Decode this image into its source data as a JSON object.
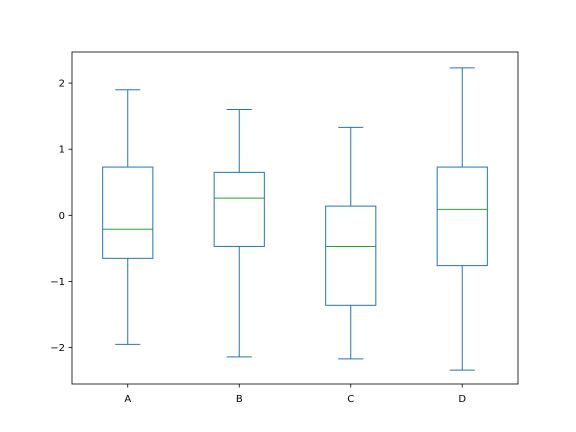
{
  "chart_data": {
    "type": "box",
    "title": "",
    "xlabel": "",
    "ylabel": "",
    "categories": [
      "A",
      "B",
      "C",
      "D"
    ],
    "boxes": [
      {
        "label": "A",
        "whisker_low": -1.95,
        "q1": -0.65,
        "median": -0.21,
        "q3": 0.73,
        "whisker_high": 1.9
      },
      {
        "label": "B",
        "whisker_low": -2.14,
        "q1": -0.47,
        "median": 0.26,
        "q3": 0.65,
        "whisker_high": 1.6
      },
      {
        "label": "C",
        "whisker_low": -2.17,
        "q1": -1.36,
        "median": -0.47,
        "q3": 0.14,
        "whisker_high": 1.33
      },
      {
        "label": "D",
        "whisker_low": -2.34,
        "q1": -0.76,
        "median": 0.09,
        "q3": 0.73,
        "whisker_high": 2.23
      }
    ],
    "ylim": [
      -2.55,
      2.47
    ],
    "yticks": [
      -2,
      -1,
      0,
      1,
      2
    ],
    "ytick_labels": [
      "−2",
      "−1",
      "0",
      "1",
      "2"
    ],
    "grid": false,
    "legend": "none",
    "colors": {
      "box": "#1f77b4",
      "median": "#2ca02c",
      "axes": "#000000"
    }
  }
}
